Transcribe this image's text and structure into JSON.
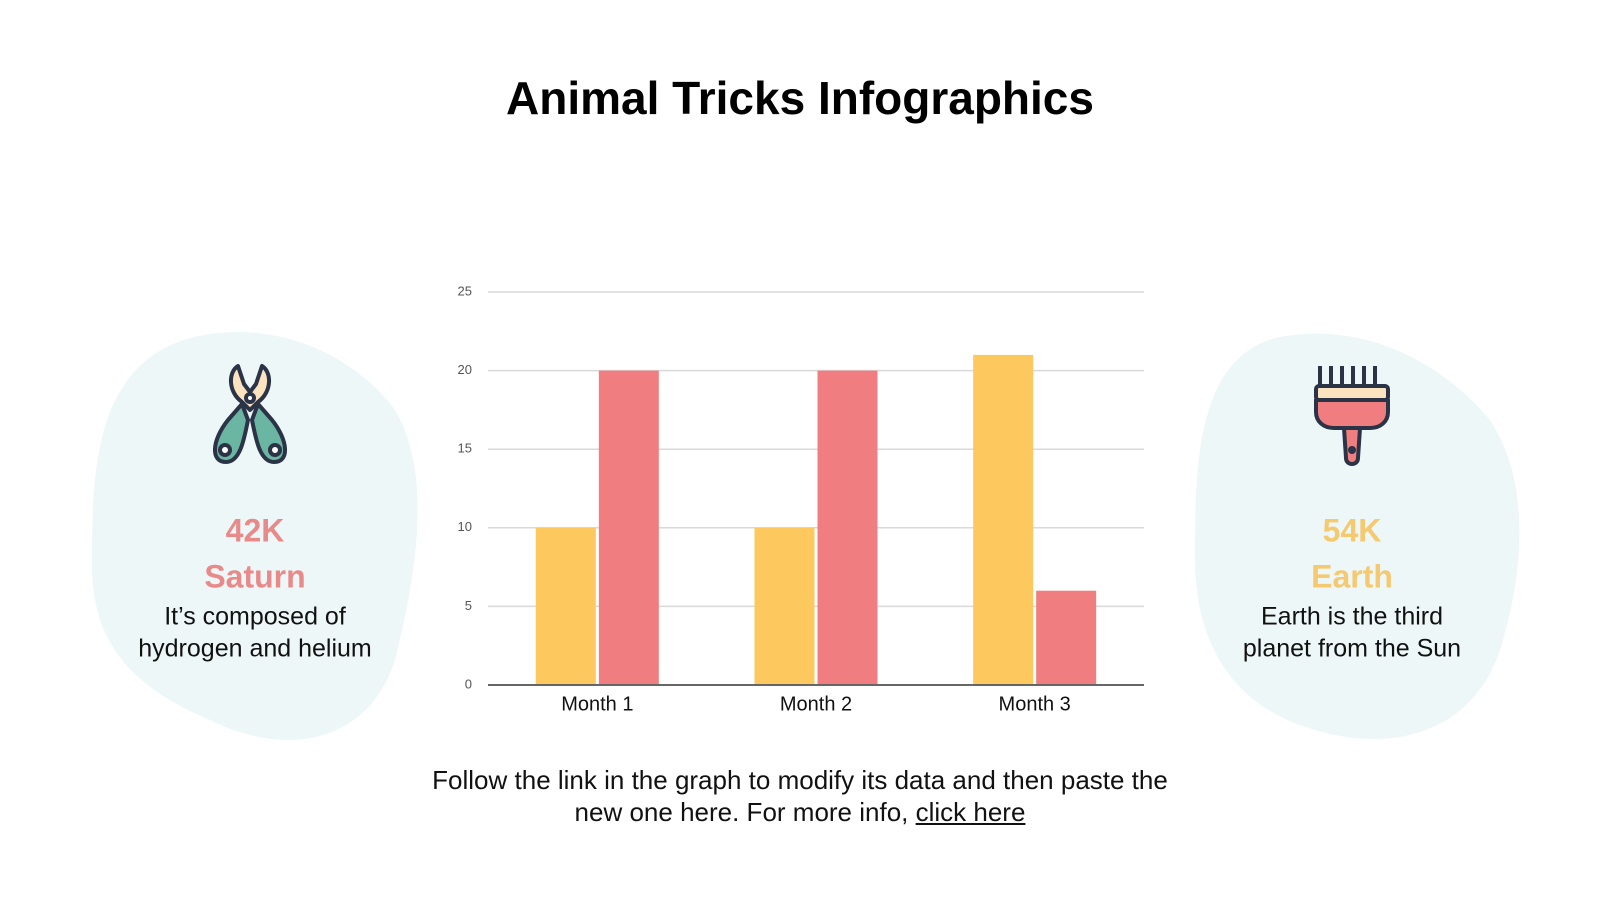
{
  "title": "Animal Tricks Infographics",
  "chart_data": {
    "type": "bar",
    "categories": [
      "Month 1",
      "Month 2",
      "Month 3"
    ],
    "series": [
      {
        "color": "#fdc85e",
        "values": [
          10,
          10,
          21
        ]
      },
      {
        "color": "#f07e81",
        "values": [
          20,
          20,
          6
        ]
      }
    ],
    "ylim": [
      0,
      25
    ],
    "yticks": [
      0,
      5,
      10,
      15,
      20,
      25
    ],
    "grid": true
  },
  "cards": [
    {
      "stat": "42K",
      "name": "Saturn",
      "description": [
        "It’s composed of",
        "hydrogen and helium"
      ],
      "color": "#e98a8a"
    },
    {
      "stat": "54K",
      "name": "Earth",
      "description": [
        "Earth is the third",
        "planet from the Sun"
      ],
      "color": "#f5c970"
    }
  ],
  "footer": {
    "lines": [
      "Follow the link in the graph to modify its data and then paste the",
      "new one here. For more info, "
    ],
    "link": "click here"
  }
}
